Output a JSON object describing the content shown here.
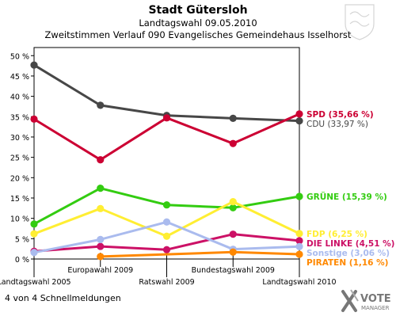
{
  "header": {
    "title": "Stadt Gütersloh",
    "subtitle": "Landtagswahl 09.05.2010",
    "subtitle2": "Zweitstimmen Verlauf 090 Evangelisches Gemeindehaus Isselhorst"
  },
  "footer": {
    "note": "4 von 4 Schnellmeldungen",
    "brand_line1": "VOTE",
    "brand_line2": "MANAGER"
  },
  "chart_data": {
    "type": "line",
    "title": "Stadt Gütersloh",
    "x": [
      "Landtagswahl 2005",
      "Europawahl 2009",
      "Ratswahl 2009",
      "Bundestagswahl 2009",
      "Landtagswahl 2010"
    ],
    "ylim": [
      0,
      52
    ],
    "yticks": [
      0,
      5,
      10,
      15,
      20,
      25,
      30,
      35,
      40,
      45,
      50
    ],
    "ytick_labels": [
      "0 %",
      "5 %",
      "10 %",
      "15 %",
      "20 %",
      "25 %",
      "30 %",
      "35 %",
      "40 %",
      "45 %",
      "50 %"
    ],
    "grid": false,
    "series": [
      {
        "name": "CDU",
        "label": "CDU (33,97 %)",
        "color": "#474747",
        "values": [
          47.7,
          37.8,
          35.3,
          34.6,
          33.97
        ]
      },
      {
        "name": "SPD",
        "label": "SPD (35,66 %)",
        "color": "#cc0033",
        "values": [
          34.4,
          24.4,
          34.7,
          28.4,
          35.66
        ]
      },
      {
        "name": "GRÜNE",
        "label": "GRÜNE (15,39 %)",
        "color": "#33cc11",
        "values": [
          8.6,
          17.4,
          13.3,
          12.6,
          15.39
        ]
      },
      {
        "name": "FDP",
        "label": "FDP (6,25 %)",
        "color": "#ffee33",
        "values": [
          6.2,
          12.4,
          5.6,
          14.1,
          6.25
        ]
      },
      {
        "name": "DIE LINKE",
        "label": "DIE LINKE (4,51 %)",
        "color": "#cc1166",
        "values": [
          1.9,
          3.1,
          2.3,
          6.1,
          4.51
        ]
      },
      {
        "name": "Sonstige",
        "label": "Sonstige (3,06 %)",
        "color": "#aabbee",
        "values": [
          1.6,
          4.8,
          9.1,
          2.4,
          3.06
        ]
      },
      {
        "name": "PIRATEN",
        "label": "PIRATEN (1,16 %)",
        "color": "#ff8800",
        "values": [
          null,
          0.6,
          null,
          1.7,
          1.16
        ]
      }
    ]
  }
}
